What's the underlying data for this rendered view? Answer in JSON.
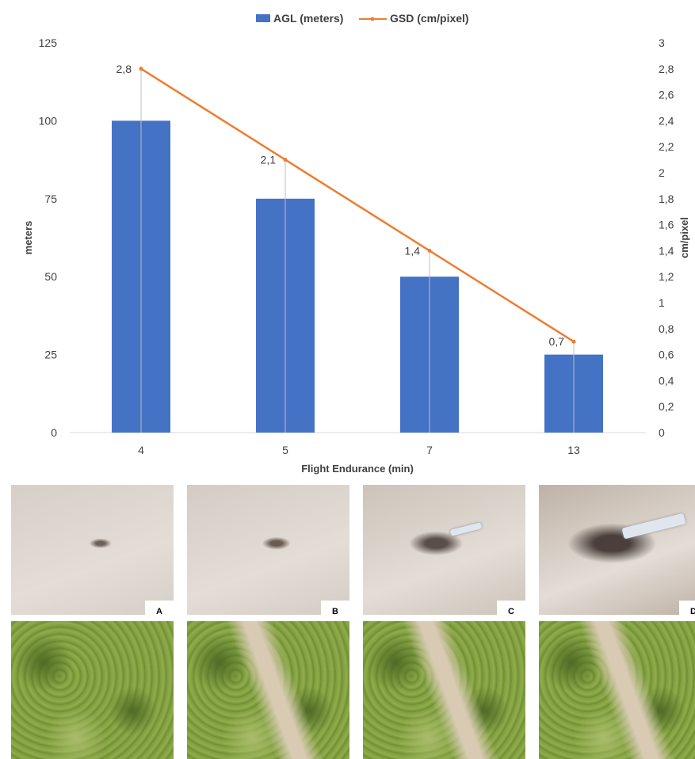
{
  "chart_data": {
    "type": "bar+line",
    "categories": [
      "4",
      "5",
      "7",
      "13"
    ],
    "xlabel": "Flight Endurance (min)",
    "ylabel": "meters",
    "ylabel_right": "cm/pixel",
    "ylim": [
      0,
      125
    ],
    "y_ticks": [
      "0",
      "25",
      "50",
      "75",
      "100",
      "125"
    ],
    "ylim_right": [
      0,
      3
    ],
    "y_ticks_right": [
      "0",
      "0,2",
      "0,4",
      "0,6",
      "0,8",
      "1",
      "1,2",
      "1,4",
      "1,6",
      "1,8",
      "2",
      "2,2",
      "2,4",
      "2,6",
      "2,8",
      "3"
    ],
    "legend_position": "top",
    "grid": false,
    "series": [
      {
        "name": "AGL (meters)",
        "kind": "bar",
        "axis": "left",
        "color": "#4472C4",
        "values": [
          100,
          75,
          50,
          25
        ]
      },
      {
        "name": "GSD (cm/pixel)",
        "kind": "line",
        "axis": "right",
        "color": "#ED7D31",
        "values": [
          2.8,
          2.1,
          1.4,
          0.7
        ],
        "data_labels": [
          "2,8",
          "2,1",
          "1,4",
          "0,7"
        ]
      }
    ]
  },
  "panels": [
    {
      "label": "A",
      "ground": "#d6cfc8",
      "object": "#6e6258"
    },
    {
      "label": "B",
      "ground": "#d4ccc4",
      "object": "#6a5d52"
    },
    {
      "label": "C",
      "ground": "#cdc3b9",
      "object": "#5a4f48"
    },
    {
      "label": "D",
      "ground": "#bfb2a6",
      "object": "#4a3f3a"
    }
  ],
  "colors": {
    "vegetation": "#7d9a3d",
    "vegetation_dark": "#4f6b25",
    "soil": "#d9cbb3"
  }
}
